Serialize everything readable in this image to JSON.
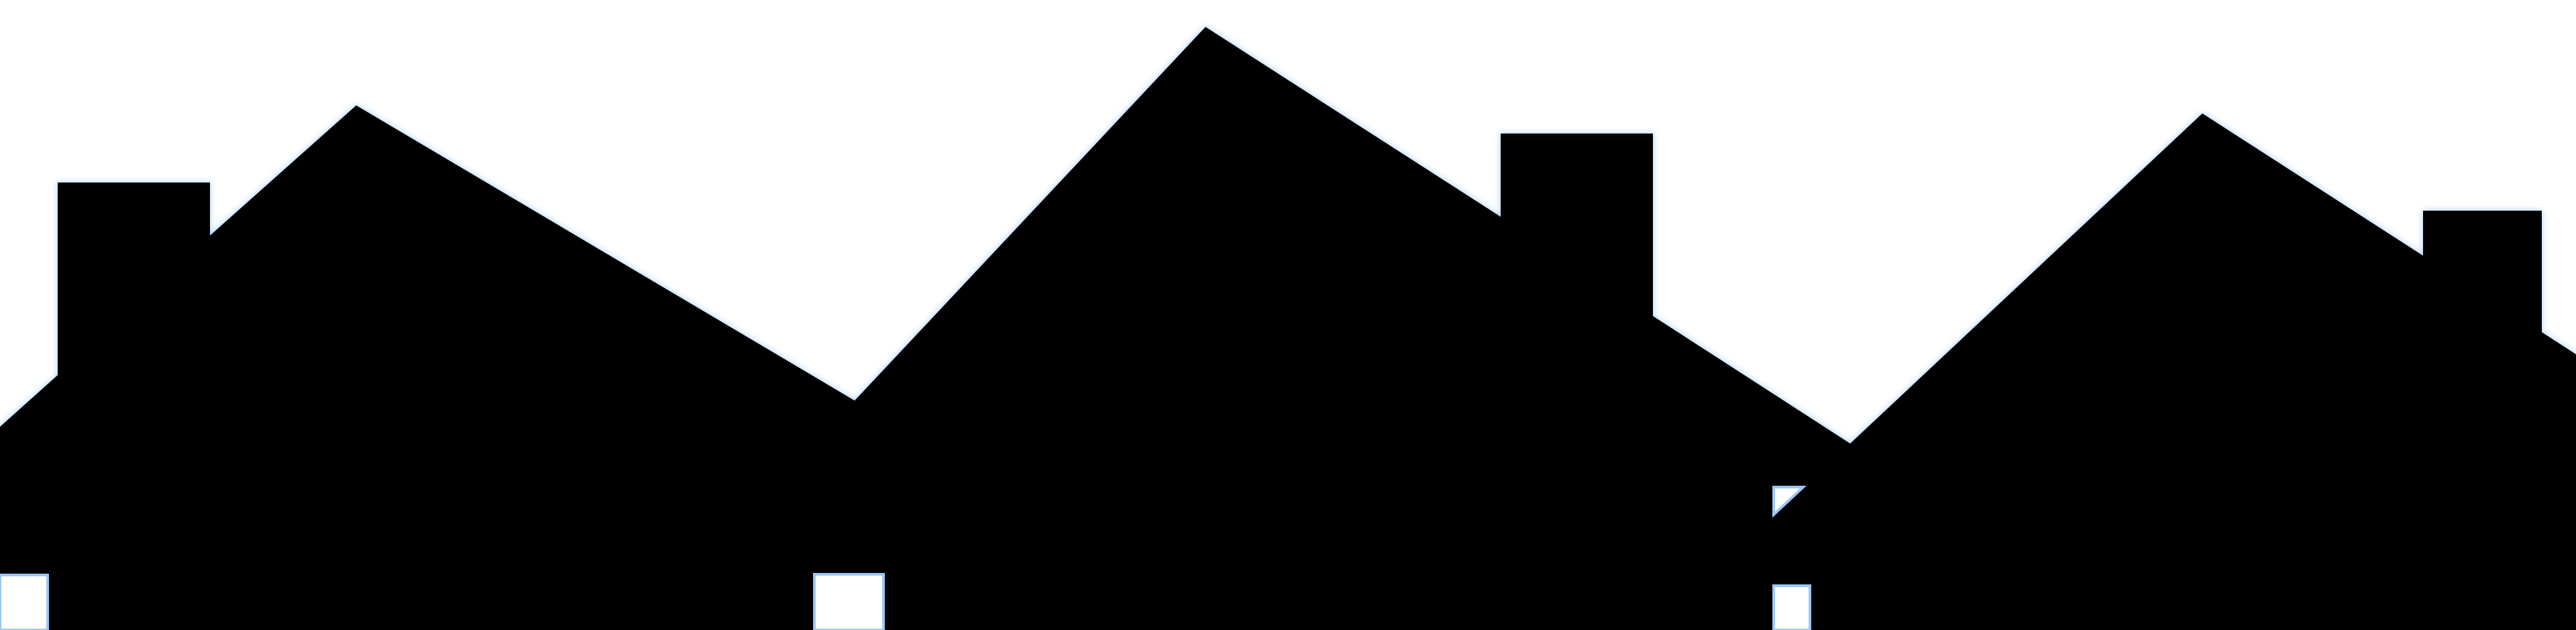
{
  "colors": {
    "background": "#ffffff",
    "silhouette": "#000000",
    "glow": "#9cc7f5"
  }
}
